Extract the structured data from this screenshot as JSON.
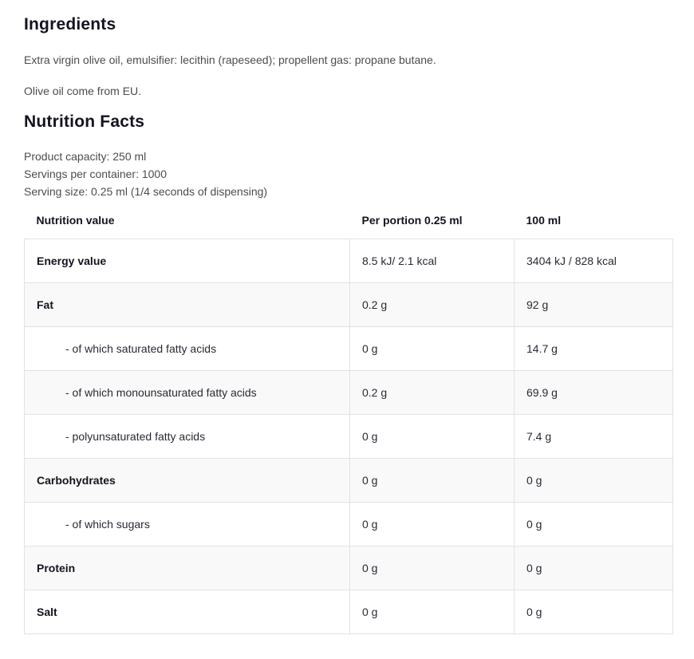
{
  "ingredients": {
    "title": "Ingredients",
    "paragraphs": [
      "Extra virgin olive oil, emulsifier: lecithin (rapeseed); propellent gas: propane butane.",
      "Olive oil come from EU."
    ]
  },
  "nutrition": {
    "title": "Nutrition Facts",
    "meta": [
      "Product capacity: 250 ml",
      "Servings per container: 1000",
      "Serving size: 0.25 ml (1/4 seconds of dispensing)"
    ],
    "table": {
      "headers": [
        "Nutrition value",
        "Per portion 0.25 ml",
        "100 ml"
      ],
      "rows": [
        {
          "label": "Energy value",
          "bold": true,
          "indent": false,
          "per_portion": "8.5 kJ/ 2.1 kcal",
          "per_100ml": "3404 kJ / 828 kcal"
        },
        {
          "label": "Fat",
          "bold": true,
          "indent": false,
          "per_portion": "0.2 g",
          "per_100ml": "92 g"
        },
        {
          "label": "- of which saturated fatty acids",
          "bold": false,
          "indent": true,
          "per_portion": "0 g",
          "per_100ml": "14.7 g"
        },
        {
          "label": "- of which monounsaturated fatty acids",
          "bold": false,
          "indent": true,
          "per_portion": "0.2 g",
          "per_100ml": "69.9 g"
        },
        {
          "label": "- polyunsaturated fatty acids",
          "bold": false,
          "indent": true,
          "per_portion": "0 g",
          "per_100ml": "7.4 g"
        },
        {
          "label": "Carbohydrates",
          "bold": true,
          "indent": false,
          "per_portion": "0 g",
          "per_100ml": "0 g"
        },
        {
          "label": "- of which sugars",
          "bold": false,
          "indent": true,
          "per_portion": "0 g",
          "per_100ml": "0 g"
        },
        {
          "label": "Protein",
          "bold": true,
          "indent": false,
          "per_portion": "0 g",
          "per_100ml": "0 g"
        },
        {
          "label": "Salt",
          "bold": true,
          "indent": false,
          "per_portion": "0 g",
          "per_100ml": "0 g"
        }
      ]
    }
  },
  "accent": {
    "scrollbar_gradient": [
      "#fdc128",
      "#f8941e",
      "#f4701f"
    ]
  }
}
